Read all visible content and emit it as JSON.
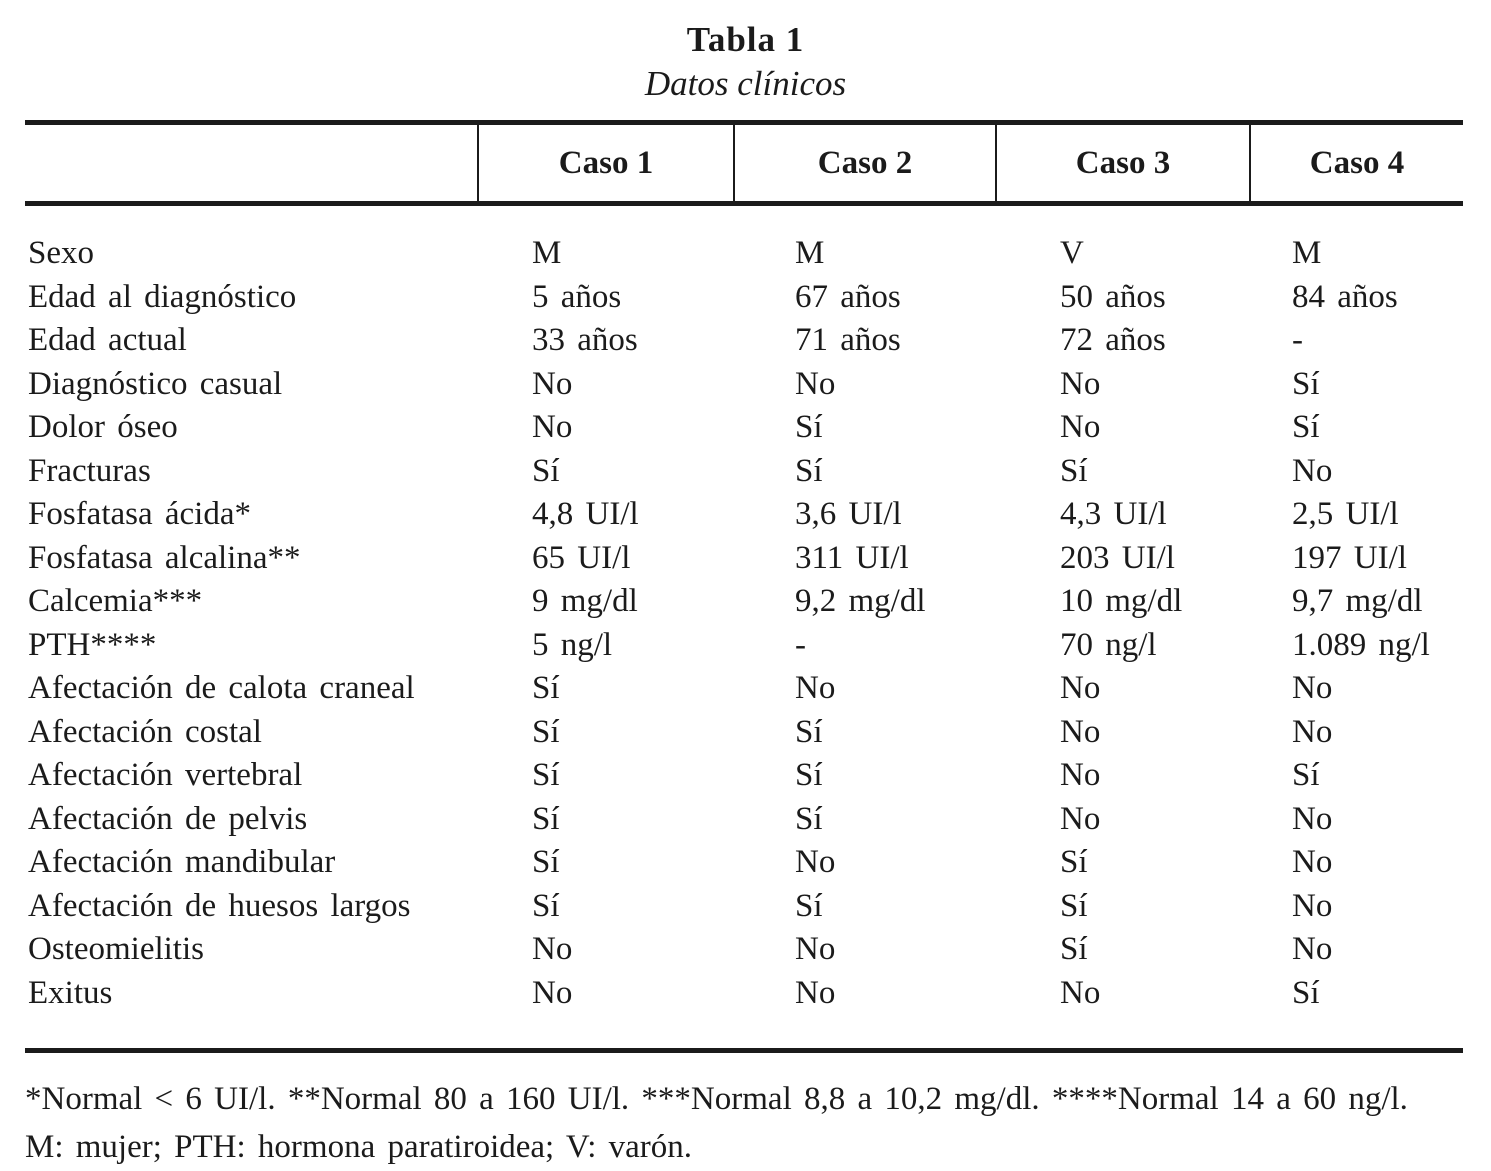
{
  "title": "Tabla 1",
  "subtitle": "Datos clínicos",
  "table": {
    "columns": [
      "Caso 1",
      "Caso 2",
      "Caso 3",
      "Caso 4"
    ],
    "rows": [
      {
        "label": "Sexo",
        "values": [
          "M",
          "M",
          "V",
          "M"
        ]
      },
      {
        "label": "Edad al diagnóstico",
        "values": [
          "5 años",
          "67 años",
          "50 años",
          "84 años"
        ]
      },
      {
        "label": "Edad actual",
        "values": [
          "33 años",
          "71 años",
          "72 años",
          "-"
        ]
      },
      {
        "label": "Diagnóstico casual",
        "values": [
          "No",
          "No",
          "No",
          "Sí"
        ]
      },
      {
        "label": "Dolor óseo",
        "values": [
          "No",
          "Sí",
          "No",
          "Sí"
        ]
      },
      {
        "label": "Fracturas",
        "values": [
          "Sí",
          "Sí",
          "Sí",
          "No"
        ]
      },
      {
        "label": "Fosfatasa ácida*",
        "values": [
          "4,8 UI/l",
          "3,6 UI/l",
          "4,3 UI/l",
          "2,5 UI/l"
        ]
      },
      {
        "label": "Fosfatasa alcalina**",
        "values": [
          "65 UI/l",
          "311 UI/l",
          "203 UI/l",
          "197 UI/l"
        ]
      },
      {
        "label": "Calcemia***",
        "values": [
          "9 mg/dl",
          "9,2 mg/dl",
          "10 mg/dl",
          "9,7 mg/dl"
        ]
      },
      {
        "label": "PTH****",
        "values": [
          "5 ng/l",
          "-",
          "70 ng/l",
          "1.089 ng/l"
        ]
      },
      {
        "label": "Afectación de calota craneal",
        "values": [
          "Sí",
          "No",
          "No",
          "No"
        ]
      },
      {
        "label": "Afectación costal",
        "values": [
          "Sí",
          "Sí",
          "No",
          "No"
        ]
      },
      {
        "label": "Afectación vertebral",
        "values": [
          "Sí",
          "Sí",
          "No",
          "Sí"
        ]
      },
      {
        "label": "Afectación de pelvis",
        "values": [
          "Sí",
          "Sí",
          "No",
          "No"
        ]
      },
      {
        "label": "Afectación mandibular",
        "values": [
          "Sí",
          "No",
          "Sí",
          "No"
        ]
      },
      {
        "label": "Afectación de huesos largos",
        "values": [
          "Sí",
          "Sí",
          "Sí",
          "No"
        ]
      },
      {
        "label": "Osteomielitis",
        "values": [
          "No",
          "No",
          "Sí",
          "No"
        ]
      },
      {
        "label": "Exitus",
        "values": [
          "No",
          "No",
          "No",
          "Sí"
        ]
      }
    ]
  },
  "footnotes": [
    "*Normal < 6 UI/l. **Normal 80 a 160 UI/l. ***Normal 8,8 a 10,2 mg/dl. ****Normal 14 a 60 ng/l.",
    "M: mujer; PTH: hormona paratiroidea; V: varón."
  ]
}
